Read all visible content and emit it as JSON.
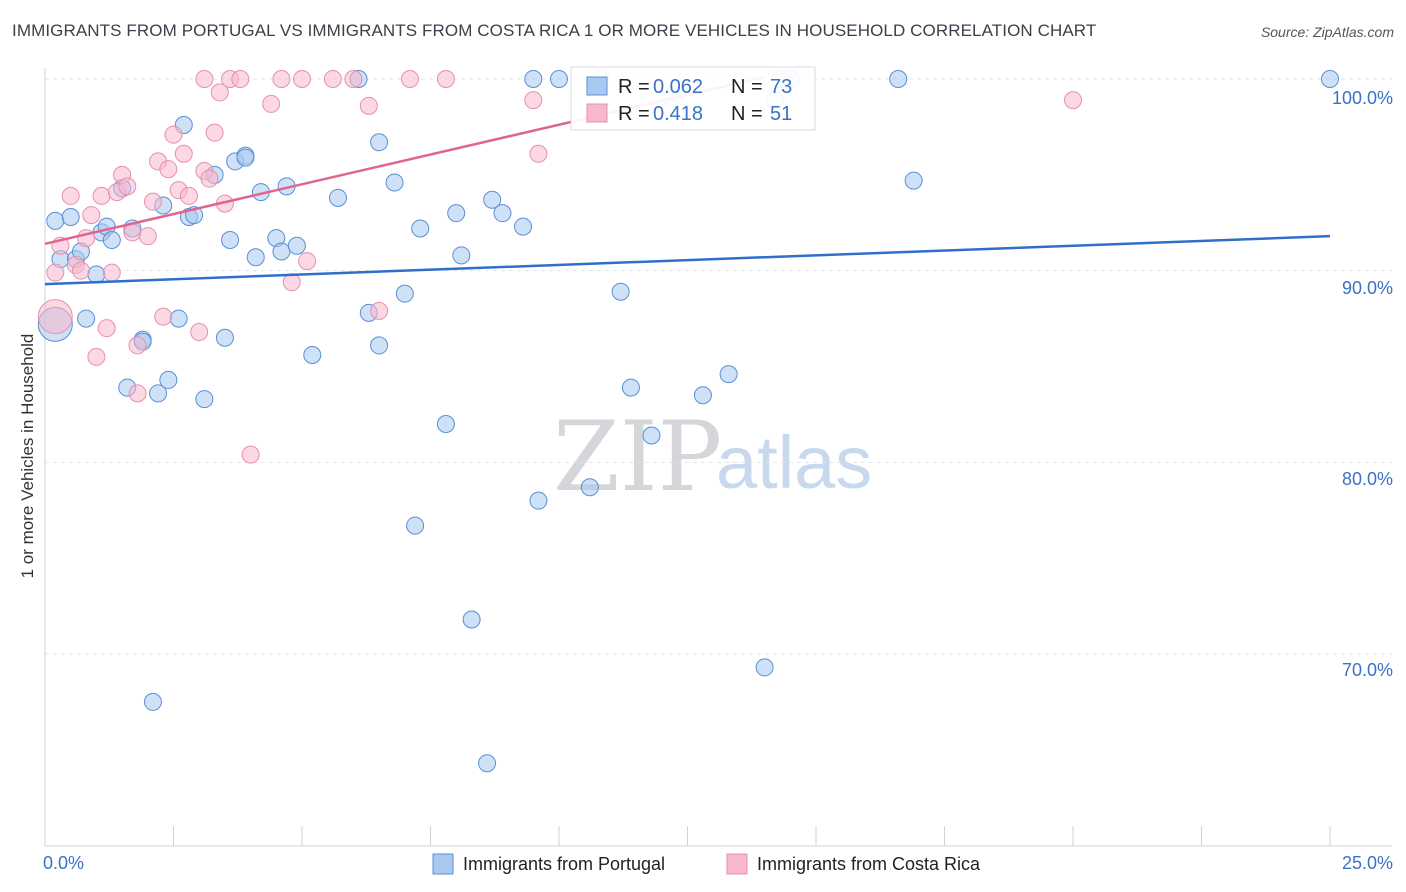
{
  "title": "IMMIGRANTS FROM PORTUGAL VS IMMIGRANTS FROM COSTA RICA 1 OR MORE VEHICLES IN HOUSEHOLD CORRELATION CHART",
  "source": "Source: ZipAtlas.com",
  "watermark": {
    "zip": "ZIP",
    "atlas": "atlas"
  },
  "stats": {
    "portugal": {
      "r_label": "R =",
      "r": "0.062",
      "n_label": "N =",
      "n": "73"
    },
    "costa_rica": {
      "r_label": "R =",
      "r": "0.418",
      "n_label": "N =",
      "n": "51"
    }
  },
  "legend": {
    "portugal": "Immigrants from Portugal",
    "costa_rica": "Immigrants from Costa Rica"
  },
  "colors": {
    "portugal_fill": "#a8c8f0",
    "portugal_stroke": "#5b8fd4",
    "portugal_line": "#2d6fcb",
    "costa_fill": "#f7b8cc",
    "costa_stroke": "#e690ad",
    "costa_line": "#e0658e",
    "grid": "#dfe3e8",
    "tick_text": "#3b72c7"
  },
  "chart_data": {
    "type": "scatter",
    "title": "IMMIGRANTS FROM PORTUGAL VS IMMIGRANTS FROM COSTA RICA 1 OR MORE VEHICLES IN HOUSEHOLD CORRELATION CHART",
    "xlabel": "",
    "ylabel": "1 or more Vehicles in Household",
    "xlim": [
      0,
      25
    ],
    "ylim": [
      60.5,
      101
    ],
    "x_tick_labels": [
      "0.0%",
      "25.0%"
    ],
    "y_ticks": [
      70,
      80,
      90,
      100
    ],
    "y_tick_labels": [
      "70.0%",
      "80.0%",
      "90.0%",
      "100.0%"
    ],
    "grid": true,
    "legend_position": "bottom-center",
    "series": [
      {
        "name": "Immigrants from Portugal",
        "color": "#a8c8f0",
        "trend": {
          "x": [
            0,
            25
          ],
          "y": [
            89.3,
            91.8
          ]
        },
        "points": [
          [
            0.2,
            87.2
          ],
          [
            0.2,
            92.6
          ],
          [
            0.5,
            92.8
          ],
          [
            0.3,
            90.6
          ],
          [
            0.6,
            90.6
          ],
          [
            0.7,
            91.0
          ],
          [
            1.0,
            89.8
          ],
          [
            0.8,
            87.5
          ],
          [
            1.1,
            92.0
          ],
          [
            1.2,
            92.3
          ],
          [
            1.3,
            91.6
          ],
          [
            1.5,
            94.3
          ],
          [
            1.7,
            92.2
          ],
          [
            1.6,
            83.9
          ],
          [
            1.9,
            86.4
          ],
          [
            1.9,
            86.3
          ],
          [
            2.1,
            67.5
          ],
          [
            2.2,
            83.6
          ],
          [
            2.3,
            93.4
          ],
          [
            2.4,
            84.3
          ],
          [
            2.6,
            87.5
          ],
          [
            2.7,
            97.6
          ],
          [
            2.8,
            92.8
          ],
          [
            2.9,
            92.9
          ],
          [
            3.1,
            83.3
          ],
          [
            3.3,
            95.0
          ],
          [
            3.5,
            86.5
          ],
          [
            3.6,
            91.6
          ],
          [
            3.7,
            95.7
          ],
          [
            3.9,
            96.0
          ],
          [
            3.9,
            95.9
          ],
          [
            4.1,
            90.7
          ],
          [
            4.2,
            94.1
          ],
          [
            4.5,
            91.7
          ],
          [
            4.6,
            91.0
          ],
          [
            4.7,
            94.4
          ],
          [
            4.9,
            91.3
          ],
          [
            5.2,
            85.6
          ],
          [
            5.7,
            93.8
          ],
          [
            6.1,
            100.0
          ],
          [
            6.3,
            87.8
          ],
          [
            6.5,
            86.1
          ],
          [
            6.5,
            96.7
          ],
          [
            6.8,
            94.6
          ],
          [
            7.0,
            88.8
          ],
          [
            7.2,
            76.7
          ],
          [
            7.3,
            92.2
          ],
          [
            7.8,
            82.0
          ],
          [
            8.0,
            93.0
          ],
          [
            8.1,
            90.8
          ],
          [
            8.3,
            71.8
          ],
          [
            8.6,
            64.3
          ],
          [
            8.7,
            93.7
          ],
          [
            8.9,
            93.0
          ],
          [
            9.3,
            92.3
          ],
          [
            9.5,
            100.0
          ],
          [
            9.6,
            78.0
          ],
          [
            10.0,
            100.0
          ],
          [
            10.6,
            78.7
          ],
          [
            11.2,
            88.9
          ],
          [
            11.4,
            83.9
          ],
          [
            11.8,
            81.4
          ],
          [
            12.2,
            99.0
          ],
          [
            12.8,
            83.5
          ],
          [
            13.3,
            84.6
          ],
          [
            14.0,
            69.3
          ],
          [
            14.2,
            98.9
          ],
          [
            14.3,
            100.0
          ],
          [
            16.6,
            100.0
          ],
          [
            16.9,
            94.7
          ],
          [
            25.0,
            100.0
          ],
          [
            14.5,
            100.0
          ],
          [
            10.8,
            100.0
          ]
        ]
      },
      {
        "name": "Immigrants from Costa Rica",
        "color": "#f7b8cc",
        "trend": {
          "x": [
            0,
            14
          ],
          "y": [
            91.4,
            100.1
          ]
        },
        "points": [
          [
            0.2,
            87.6
          ],
          [
            0.2,
            89.9
          ],
          [
            0.3,
            91.3
          ],
          [
            0.5,
            93.9
          ],
          [
            0.6,
            90.3
          ],
          [
            0.7,
            90.0
          ],
          [
            0.8,
            91.7
          ],
          [
            0.9,
            92.9
          ],
          [
            1.0,
            85.5
          ],
          [
            1.1,
            93.9
          ],
          [
            1.2,
            87.0
          ],
          [
            1.3,
            89.9
          ],
          [
            1.4,
            94.1
          ],
          [
            1.5,
            95.0
          ],
          [
            1.6,
            94.4
          ],
          [
            1.7,
            92.0
          ],
          [
            1.8,
            83.6
          ],
          [
            1.8,
            86.1
          ],
          [
            2.0,
            91.8
          ],
          [
            2.1,
            93.6
          ],
          [
            2.2,
            95.7
          ],
          [
            2.3,
            87.6
          ],
          [
            2.4,
            95.3
          ],
          [
            2.5,
            97.1
          ],
          [
            2.6,
            94.2
          ],
          [
            2.7,
            96.1
          ],
          [
            2.8,
            93.9
          ],
          [
            3.0,
            86.8
          ],
          [
            3.1,
            95.2
          ],
          [
            3.2,
            94.8
          ],
          [
            3.3,
            97.2
          ],
          [
            3.4,
            99.3
          ],
          [
            3.5,
            93.5
          ],
          [
            3.6,
            100.0
          ],
          [
            3.8,
            100.0
          ],
          [
            4.0,
            80.4
          ],
          [
            4.4,
            98.7
          ],
          [
            4.6,
            100.0
          ],
          [
            4.8,
            89.4
          ],
          [
            5.0,
            100.0
          ],
          [
            5.1,
            90.5
          ],
          [
            5.6,
            100.0
          ],
          [
            6.0,
            100.0
          ],
          [
            6.3,
            98.6
          ],
          [
            6.5,
            87.9
          ],
          [
            7.1,
            100.0
          ],
          [
            7.8,
            100.0
          ],
          [
            9.5,
            98.9
          ],
          [
            9.6,
            96.1
          ],
          [
            20.0,
            98.9
          ],
          [
            3.1,
            100.0
          ]
        ]
      }
    ]
  }
}
